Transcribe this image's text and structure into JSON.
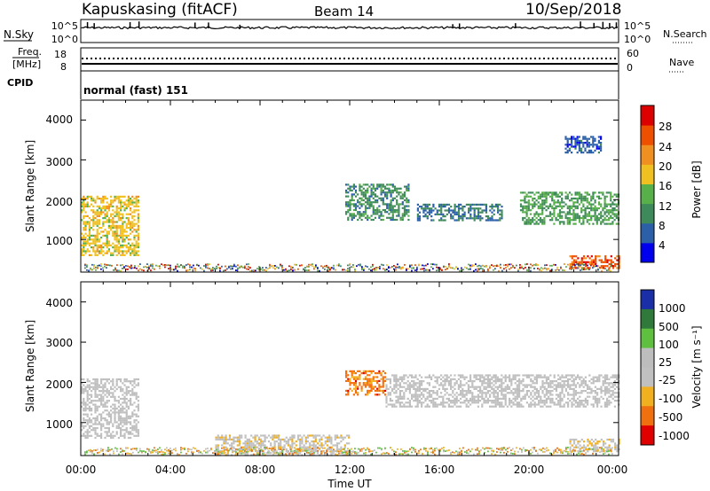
{
  "header": {
    "station": "Kapuskasing (fitACF)",
    "beam": "Beam 14",
    "date": "10/Sep/2018"
  },
  "sky_panel": {
    "left_label": "N.Sky",
    "right_label": "N.Search",
    "left_ticks": [
      "10^5",
      "10^0"
    ],
    "right_ticks": [
      "10^5",
      "10^0"
    ]
  },
  "freq_panel": {
    "left_label_1": "Freq.",
    "left_label_2": "[MHz]",
    "left_ticks": [
      "18",
      "8"
    ],
    "right_label": "Nave",
    "right_ticks": [
      "60",
      "0"
    ]
  },
  "cpid_panel": {
    "label": "CPID",
    "value": "normal (fast) 151"
  },
  "power_panel": {
    "ylabel": "Slant Range [km]",
    "yticks": [
      "4000",
      "3000",
      "2000",
      "1000"
    ],
    "colorbar_label": "Power [dB]",
    "colorbar_ticks": [
      "28",
      "24",
      "20",
      "16",
      "12",
      "8",
      "4"
    ]
  },
  "velocity_panel": {
    "ylabel": "Slant Range [km]",
    "yticks": [
      "4000",
      "3000",
      "2000",
      "1000"
    ],
    "colorbar_label": "Velocity [m s⁻¹]",
    "colorbar_ticks": [
      "1000",
      "500",
      "100",
      "25",
      "-25",
      "-100",
      "-500",
      "-1000"
    ]
  },
  "x_axis": {
    "ticks": [
      "00:00",
      "04:00",
      "08:00",
      "12:00",
      "16:00",
      "20:00",
      "00:00"
    ],
    "label": "Time UT"
  },
  "colors": {
    "power_scale": [
      "#0000ee",
      "#2b5fa8",
      "#3f8a5a",
      "#58b04a",
      "#f0c020",
      "#f09020",
      "#ee5000",
      "#dd0000"
    ],
    "velocity_scale": [
      "#1a2ea8",
      "#2f7a3a",
      "#5fc040",
      "#bdbdbd",
      "#c0c0c0",
      "#f0b020",
      "#f07010",
      "#e00000"
    ]
  },
  "chart_data": [
    {
      "type": "heatmap",
      "title": "Power",
      "xlabel": "",
      "ylabel": "Slant Range [km]",
      "xlim": [
        "00:00",
        "24:00"
      ],
      "ylim": [
        180,
        4500
      ],
      "colorbar": {
        "label": "Power [dB]",
        "range": [
          0,
          32
        ]
      },
      "features": [
        {
          "t_start": 0.0,
          "t_end": 2.6,
          "range_start": 600,
          "range_end": 2100,
          "power_db": 18,
          "note": ""
        },
        {
          "t_start": 11.8,
          "t_end": 14.6,
          "range_start": 1500,
          "range_end": 2400,
          "power_db": 10,
          "note": ""
        },
        {
          "t_start": 15.0,
          "t_end": 18.8,
          "range_start": 1500,
          "range_end": 1900,
          "power_db": 8,
          "note": ""
        },
        {
          "t_start": 19.6,
          "t_end": 24.0,
          "range_start": 1400,
          "range_end": 2200,
          "power_db": 12,
          "note": ""
        },
        {
          "t_start": 21.8,
          "t_end": 24.0,
          "range_start": 300,
          "range_end": 600,
          "power_db": 26,
          "note": ""
        },
        {
          "t_start": 21.6,
          "t_end": 23.2,
          "range_start": 3200,
          "range_end": 3600,
          "power_db": 6,
          "note": ""
        }
      ]
    },
    {
      "type": "heatmap",
      "title": "Velocity",
      "xlabel": "Time UT",
      "ylabel": "Slant Range [km]",
      "xlim": [
        "00:00",
        "24:00"
      ],
      "ylim": [
        180,
        4500
      ],
      "colorbar": {
        "label": "Velocity [m s⁻¹]",
        "range": [
          -1000,
          1000
        ]
      },
      "features": [
        {
          "t_start": 0.0,
          "t_end": 2.6,
          "range_start": 600,
          "range_end": 2100,
          "velocity": 0,
          "note": ""
        },
        {
          "t_start": 11.8,
          "t_end": 13.6,
          "range_start": 1700,
          "range_end": 2300,
          "velocity": -600,
          "note": ""
        },
        {
          "t_start": 13.6,
          "t_end": 24.0,
          "range_start": 1400,
          "range_end": 2200,
          "velocity": 0,
          "note": ""
        },
        {
          "t_start": 21.8,
          "t_end": 24.0,
          "range_start": 300,
          "range_end": 600,
          "velocity": -200,
          "note": ""
        },
        {
          "t_start": 6.0,
          "t_end": 12.0,
          "range_start": 200,
          "range_end": 700,
          "velocity": -150,
          "note": ""
        }
      ]
    }
  ]
}
